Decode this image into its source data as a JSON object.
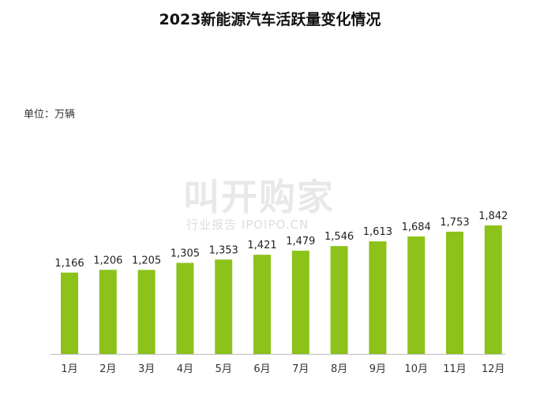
{
  "chart_data": {
    "type": "bar",
    "title": "2023新能源汽车活跃量变化情况",
    "unit": "单位：万辆",
    "categories": [
      "1月",
      "2月",
      "3月",
      "4月",
      "5月",
      "6月",
      "7月",
      "8月",
      "9月",
      "10月",
      "11月",
      "12月"
    ],
    "values": [
      1166,
      1206,
      1205,
      1305,
      1353,
      1421,
      1479,
      1546,
      1613,
      1684,
      1753,
      1842
    ],
    "value_labels": [
      "1,166",
      "1,206",
      "1,205",
      "1,305",
      "1,353",
      "1,421",
      "1,479",
      "1,546",
      "1,613",
      "1,684",
      "1,753",
      "1,842"
    ],
    "ylim": [
      0,
      2000
    ],
    "grid": false,
    "bar_color": "#8cc21a"
  },
  "watermark": {
    "main": "叫开购家",
    "sub": "行业报告 IPOIPO.CN"
  }
}
